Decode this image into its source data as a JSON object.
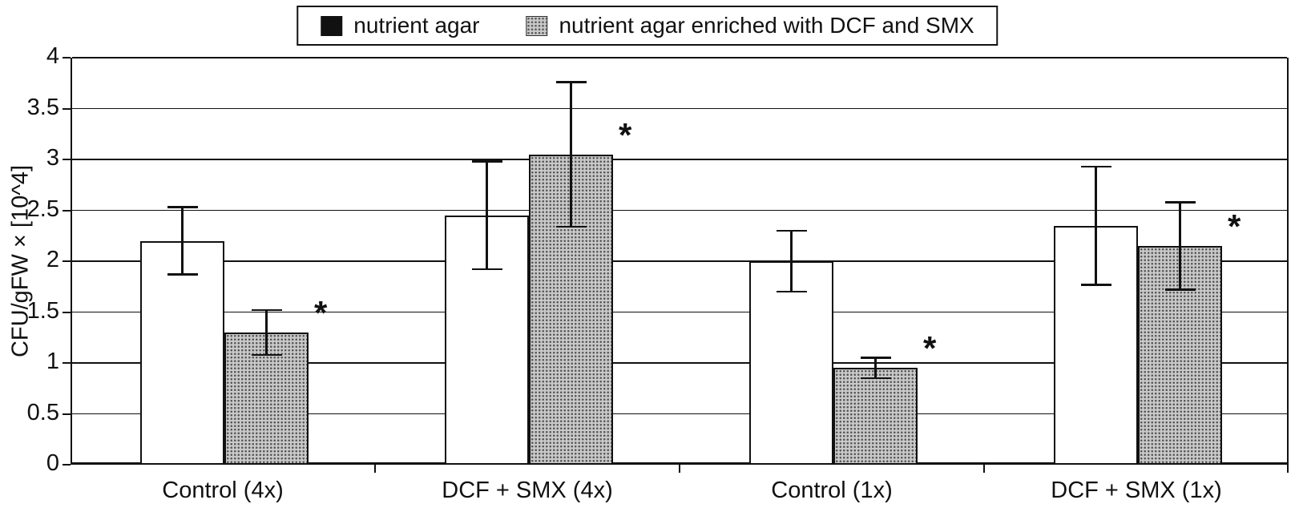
{
  "chart_data": {
    "type": "bar",
    "title": "",
    "xlabel": "",
    "ylabel": "CFU/gFW × [10^4]",
    "ylim": [
      0,
      4
    ],
    "ytick_step": 0.5,
    "grid": true,
    "legend_position": "top-center",
    "significance_marker": "*",
    "categories": [
      "Control (4x)",
      "DCF + SMX (4x)",
      "Control (1x)",
      "DCF + SMX (1x)"
    ],
    "series": [
      {
        "name": "nutrient agar",
        "fill": "white",
        "values": [
          2.2,
          2.45,
          2.0,
          2.35
        ],
        "errors": [
          0.33,
          0.53,
          0.3,
          0.58
        ],
        "significant": [
          false,
          false,
          false,
          false
        ]
      },
      {
        "name": "nutrient agar enriched with DCF and SMX",
        "fill": "dotted-gray",
        "values": [
          1.3,
          3.05,
          0.95,
          2.15
        ],
        "errors": [
          0.22,
          0.71,
          0.1,
          0.43
        ],
        "significant": [
          true,
          true,
          true,
          true
        ]
      }
    ]
  }
}
